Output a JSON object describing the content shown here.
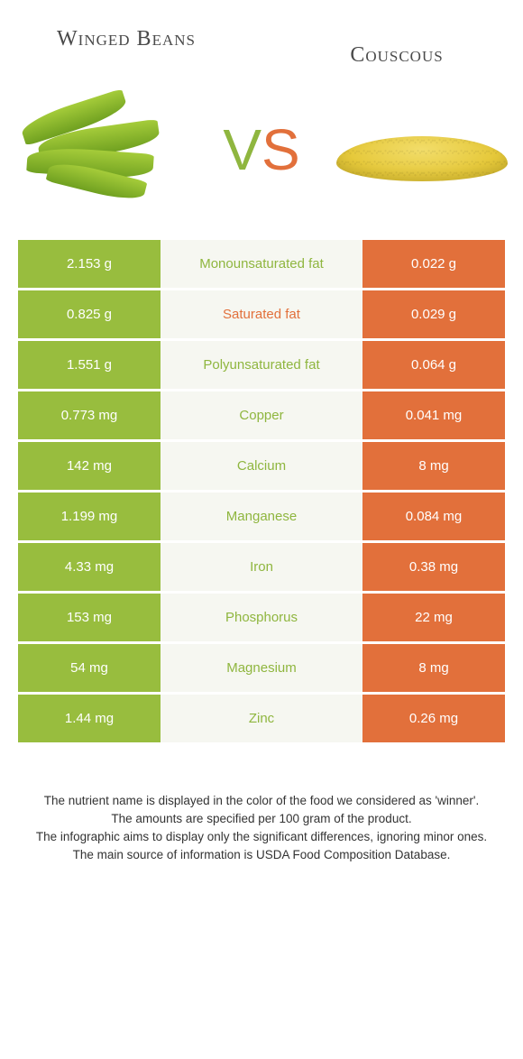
{
  "header": {
    "left_title": "Winged Beans",
    "right_title": "Couscous"
  },
  "vs": {
    "v": "V",
    "s": "S"
  },
  "colors": {
    "left_bg": "#98bd3e",
    "right_bg": "#e2703b",
    "mid_bg": "#f6f7f1",
    "left_text": "#8fb63f",
    "right_text": "#e2703b",
    "cell_text": "#ffffff"
  },
  "rows": [
    {
      "left": "2.153 g",
      "label": "Monounsaturated fat",
      "right": "0.022 g",
      "winner": "left"
    },
    {
      "left": "0.825 g",
      "label": "Saturated fat",
      "right": "0.029 g",
      "winner": "right"
    },
    {
      "left": "1.551 g",
      "label": "Polyunsaturated fat",
      "right": "0.064 g",
      "winner": "left"
    },
    {
      "left": "0.773 mg",
      "label": "Copper",
      "right": "0.041 mg",
      "winner": "left"
    },
    {
      "left": "142 mg",
      "label": "Calcium",
      "right": "8 mg",
      "winner": "left"
    },
    {
      "left": "1.199 mg",
      "label": "Manganese",
      "right": "0.084 mg",
      "winner": "left"
    },
    {
      "left": "4.33 mg",
      "label": "Iron",
      "right": "0.38 mg",
      "winner": "left"
    },
    {
      "left": "153 mg",
      "label": "Phosphorus",
      "right": "22 mg",
      "winner": "left"
    },
    {
      "left": "54 mg",
      "label": "Magnesium",
      "right": "8 mg",
      "winner": "left"
    },
    {
      "left": "1.44 mg",
      "label": "Zinc",
      "right": "0.26 mg",
      "winner": "left"
    }
  ],
  "footer": {
    "line1": "The nutrient name is displayed in the color of the food we considered as 'winner'.",
    "line2": "The amounts are specified per 100 gram of the product.",
    "line3": "The infographic aims to display only the significant differences, ignoring minor ones.",
    "line4": "The main source of information is USDA Food Composition Database."
  }
}
